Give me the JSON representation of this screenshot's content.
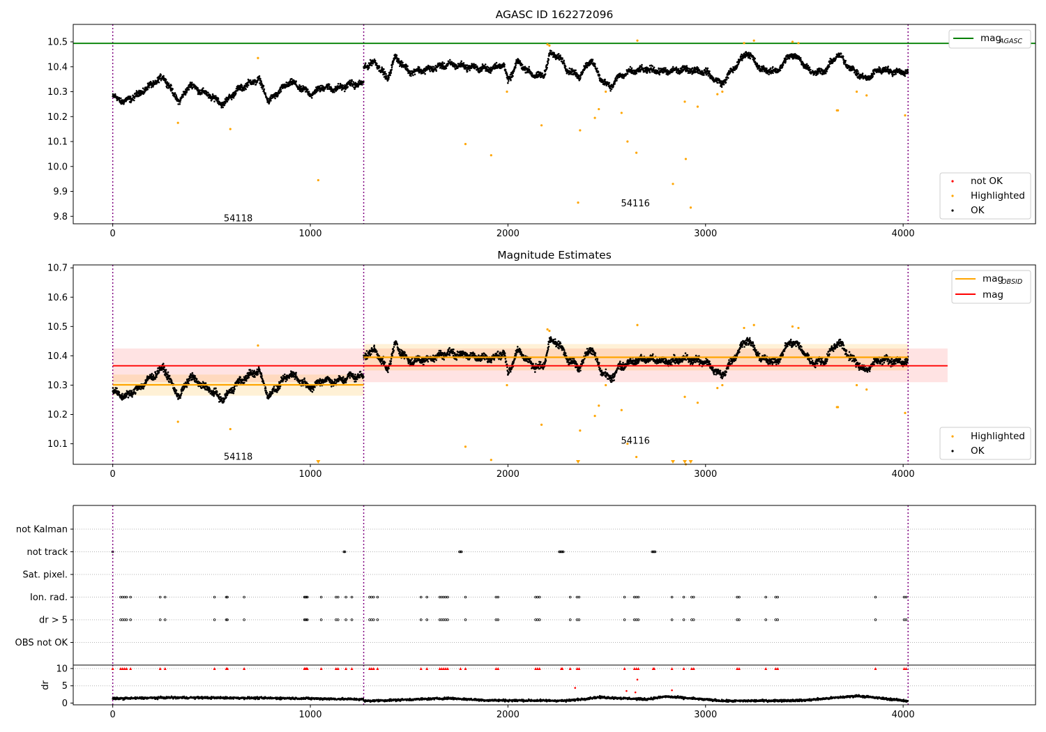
{
  "colors": {
    "ok": "#000000",
    "highlighted": "#ffa500",
    "not_ok": "#ff0000",
    "agasc_line": "#008000",
    "mag_line": "#ff0000",
    "obsid_line": "#ffa500",
    "obs_boundary": "#800080"
  },
  "chart_data": [
    {
      "type": "scatter",
      "title": "AGASC ID 162272096",
      "xlabel": "",
      "ylabel": "",
      "xlim": [
        -200,
        4670
      ],
      "ylim": [
        9.77,
        10.57
      ],
      "x_ticks": [
        0,
        1000,
        2000,
        3000,
        4000
      ],
      "y_ticks": [
        9.8,
        9.9,
        10.0,
        10.1,
        10.2,
        10.3,
        10.4,
        10.5
      ],
      "obs_boundaries": [
        0,
        1270,
        4025
      ],
      "annotations": [
        {
          "text": "54118",
          "x": 635,
          "y": 9.78
        },
        {
          "text": "54116",
          "x": 2645,
          "y": 9.84
        }
      ],
      "hlines": [
        {
          "name": "mag_AGASC",
          "y": 10.494,
          "color": "#008000"
        }
      ],
      "ok_segments": [
        {
          "x0": 0,
          "x1": 1270,
          "anchors": [
            [
              0,
              10.28
            ],
            [
              60,
              10.26
            ],
            [
              130,
              10.29
            ],
            [
              200,
              10.33
            ],
            [
              260,
              10.36
            ],
            [
              300,
              10.3
            ],
            [
              340,
              10.26
            ],
            [
              390,
              10.33
            ],
            [
              450,
              10.3
            ],
            [
              500,
              10.28
            ],
            [
              560,
              10.25
            ],
            [
              620,
              10.3
            ],
            [
              680,
              10.33
            ],
            [
              740,
              10.35
            ],
            [
              790,
              10.26
            ],
            [
              840,
              10.3
            ],
            [
              900,
              10.34
            ],
            [
              960,
              10.31
            ],
            [
              1010,
              10.29
            ],
            [
              1060,
              10.32
            ],
            [
              1130,
              10.31
            ],
            [
              1200,
              10.33
            ],
            [
              1270,
              10.33
            ]
          ]
        },
        {
          "x0": 1270,
          "x1": 4025,
          "anchors": [
            [
              1270,
              10.4
            ],
            [
              1330,
              10.42
            ],
            [
              1390,
              10.35
            ],
            [
              1430,
              10.44
            ],
            [
              1500,
              10.38
            ],
            [
              1600,
              10.39
            ],
            [
              1700,
              10.41
            ],
            [
              1800,
              10.4
            ],
            [
              1900,
              10.39
            ],
            [
              1980,
              10.41
            ],
            [
              2000,
              10.34
            ],
            [
              2050,
              10.42
            ],
            [
              2120,
              10.37
            ],
            [
              2180,
              10.36
            ],
            [
              2210,
              10.45
            ],
            [
              2260,
              10.44
            ],
            [
              2300,
              10.39
            ],
            [
              2360,
              10.36
            ],
            [
              2420,
              10.43
            ],
            [
              2470,
              10.35
            ],
            [
              2520,
              10.32
            ],
            [
              2560,
              10.36
            ],
            [
              2620,
              10.38
            ],
            [
              2700,
              10.39
            ],
            [
              2800,
              10.38
            ],
            [
              2900,
              10.39
            ],
            [
              3000,
              10.38
            ],
            [
              3080,
              10.33
            ],
            [
              3150,
              10.4
            ],
            [
              3210,
              10.46
            ],
            [
              3280,
              10.39
            ],
            [
              3360,
              10.38
            ],
            [
              3430,
              10.45
            ],
            [
              3480,
              10.43
            ],
            [
              3530,
              10.38
            ],
            [
              3600,
              10.38
            ],
            [
              3670,
              10.45
            ],
            [
              3740,
              10.39
            ],
            [
              3810,
              10.35
            ],
            [
              3880,
              10.39
            ],
            [
              3960,
              10.38
            ],
            [
              4025,
              10.38
            ]
          ]
        }
      ],
      "highlighted_points": [
        [
          735,
          10.435
        ],
        [
          330,
          10.175
        ],
        [
          595,
          10.15
        ],
        [
          1040,
          9.945
        ],
        [
          1785,
          10.09
        ],
        [
          1915,
          10.045
        ],
        [
          1995,
          10.3
        ],
        [
          2170,
          10.165
        ],
        [
          2355,
          9.855
        ],
        [
          2365,
          10.145
        ],
        [
          2440,
          10.195
        ],
        [
          2460,
          10.23
        ],
        [
          2495,
          10.3
        ],
        [
          2575,
          10.215
        ],
        [
          2605,
          10.1
        ],
        [
          2650,
          10.055
        ],
        [
          2655,
          10.505
        ],
        [
          2835,
          9.93
        ],
        [
          2895,
          10.26
        ],
        [
          2900,
          10.03
        ],
        [
          2925,
          9.835
        ],
        [
          2960,
          10.24
        ],
        [
          3060,
          10.29
        ],
        [
          3085,
          10.3
        ],
        [
          3195,
          10.495
        ],
        [
          3245,
          10.505
        ],
        [
          3440,
          10.5
        ],
        [
          3470,
          10.495
        ],
        [
          3665,
          10.225
        ],
        [
          3670,
          10.225
        ],
        [
          3765,
          10.3
        ],
        [
          3815,
          10.285
        ],
        [
          4010,
          10.205
        ],
        [
          2200,
          10.49
        ],
        [
          2210,
          10.485
        ]
      ],
      "legends": [
        {
          "position": "upper-right",
          "entries": [
            {
              "label": "mag",
              "sub": "AGASC",
              "marker": "line",
              "color": "#008000"
            }
          ]
        },
        {
          "position": "lower-right",
          "entries": [
            {
              "label": "not OK",
              "marker": "dot",
              "color": "#ff0000"
            },
            {
              "label": "Highlighted",
              "marker": "dot",
              "color": "#ffa500"
            },
            {
              "label": "OK",
              "marker": "dot",
              "color": "#000000"
            }
          ]
        }
      ]
    },
    {
      "type": "scatter",
      "title": "Magnitude Estimates",
      "xlabel": "",
      "ylabel": "",
      "xlim": [
        -200,
        4670
      ],
      "ylim": [
        10.03,
        10.71
      ],
      "x_ticks": [
        0,
        1000,
        2000,
        3000,
        4000
      ],
      "y_ticks": [
        10.1,
        10.2,
        10.3,
        10.4,
        10.5,
        10.6,
        10.7
      ],
      "obs_boundaries": [
        0,
        1270,
        4025
      ],
      "annotations": [
        {
          "text": "54118",
          "x": 635,
          "y": 10.045
        },
        {
          "text": "54116",
          "x": 2645,
          "y": 10.1
        }
      ],
      "mag": {
        "name": "mag",
        "y": 10.366,
        "band": [
          10.31,
          10.425
        ],
        "x_range": [
          0,
          4225
        ]
      },
      "mag_obsid": [
        {
          "name": "mag_OBSID",
          "obsid": "54118",
          "x_range": [
            0,
            1270
          ],
          "y": 10.301,
          "band": [
            10.264,
            10.336
          ]
        },
        {
          "name": "mag_OBSID",
          "obsid": "54116",
          "x_range": [
            1270,
            4025
          ],
          "y": 10.395,
          "band": [
            10.35,
            10.44
          ]
        }
      ],
      "below_range_markers": [
        1040,
        2355,
        2835,
        2895,
        2925
      ],
      "legends": [
        {
          "position": "upper-right",
          "entries": [
            {
              "label": "mag",
              "sub": "OBSID",
              "marker": "line",
              "color": "#ffa500"
            },
            {
              "label": "mag",
              "marker": "line",
              "color": "#ff0000"
            }
          ]
        },
        {
          "position": "lower-right",
          "entries": [
            {
              "label": "Highlighted",
              "marker": "dot",
              "color": "#ffa500"
            },
            {
              "label": "OK",
              "marker": "dot",
              "color": "#000000"
            }
          ]
        }
      ]
    },
    {
      "type": "scatter",
      "title": "",
      "xlabel": "",
      "ylabel": "",
      "xlim": [
        -200,
        4670
      ],
      "categories": [
        "not Kalman",
        "not track",
        "Sat. pixel.",
        "Ion. rad.",
        "dr > 5",
        "OBS not OK"
      ],
      "obs_boundaries": [
        0,
        1270,
        4025
      ],
      "flags": {
        "not Kalman": [],
        "not track": [
          0,
          1170,
          1175,
          1755,
          1760,
          1765,
          2260,
          2265,
          2270,
          2275,
          2280,
          2730,
          2735,
          2740,
          2745
        ],
        "Sat. pixel.": [],
        "Ion. rad.": [
          40,
          50,
          60,
          70,
          90,
          240,
          265,
          515,
          575,
          580,
          665,
          970,
          975,
          980,
          985,
          1055,
          1130,
          1140,
          1180,
          1210,
          1300,
          1310,
          1320,
          1340,
          1560,
          1590,
          1655,
          1665,
          1675,
          1685,
          1695,
          1785,
          1940,
          1950,
          2140,
          2150,
          2160,
          2315,
          2350,
          2360,
          2590,
          2640,
          2650,
          2660,
          2830,
          2890,
          2930,
          2940,
          3160,
          3170,
          3305,
          3355,
          3365,
          3860,
          4005,
          4015
        ],
        "dr > 5": [
          40,
          50,
          60,
          70,
          90,
          240,
          265,
          515,
          575,
          580,
          665,
          970,
          975,
          980,
          985,
          1055,
          1130,
          1140,
          1180,
          1210,
          1300,
          1310,
          1320,
          1340,
          1560,
          1590,
          1655,
          1665,
          1675,
          1685,
          1695,
          1785,
          1940,
          1950,
          2140,
          2150,
          2160,
          2315,
          2350,
          2360,
          2590,
          2640,
          2650,
          2660,
          2830,
          2890,
          2930,
          2940,
          3160,
          3170,
          3305,
          3355,
          3365,
          3860,
          4005,
          4015
        ],
        "OBS not OK": []
      }
    },
    {
      "type": "scatter",
      "title": "",
      "xlabel": "",
      "ylabel": "dr",
      "xlim": [
        -200,
        4670
      ],
      "ylim": [
        -0.5,
        11
      ],
      "x_ticks": [
        0,
        1000,
        2000,
        3000,
        4000
      ],
      "y_ticks": [
        0,
        5,
        10
      ],
      "obs_boundaries": [
        0,
        1270,
        4025
      ],
      "ok_segments": [
        {
          "x0": 0,
          "x1": 1270,
          "anchors": [
            [
              0,
              1.3
            ],
            [
              300,
              1.6
            ],
            [
              600,
              1.5
            ],
            [
              900,
              1.4
            ],
            [
              1270,
              1.1
            ]
          ]
        },
        {
          "x0": 1270,
          "x1": 4025,
          "anchors": [
            [
              1270,
              0.6
            ],
            [
              1700,
              1.4
            ],
            [
              1900,
              0.8
            ],
            [
              2300,
              0.7
            ],
            [
              2460,
              1.7
            ],
            [
              2700,
              1.1
            ],
            [
              2800,
              1.9
            ],
            [
              3100,
              0.6
            ],
            [
              3500,
              0.8
            ],
            [
              3770,
              2.1
            ],
            [
              4025,
              0.6
            ]
          ]
        }
      ],
      "clipped_points_at": 10,
      "not_ok_points": [
        [
          2340,
          4.4
        ],
        [
          2655,
          6.8
        ],
        [
          2830,
          3.7
        ],
        [
          2600,
          3.5
        ],
        [
          2645,
          3.1
        ]
      ],
      "clipped_x": [
        0,
        40,
        50,
        60,
        70,
        90,
        240,
        265,
        515,
        575,
        580,
        665,
        970,
        975,
        980,
        985,
        1055,
        1130,
        1140,
        1180,
        1210,
        1300,
        1310,
        1320,
        1340,
        1560,
        1590,
        1655,
        1665,
        1675,
        1685,
        1695,
        1760,
        1785,
        1940,
        1950,
        2140,
        2150,
        2160,
        2270,
        2275,
        2315,
        2350,
        2360,
        2590,
        2640,
        2650,
        2660,
        2735,
        2740,
        2830,
        2890,
        2930,
        2940,
        3160,
        3170,
        3305,
        3355,
        3365,
        3860,
        4005,
        4015
      ]
    }
  ]
}
